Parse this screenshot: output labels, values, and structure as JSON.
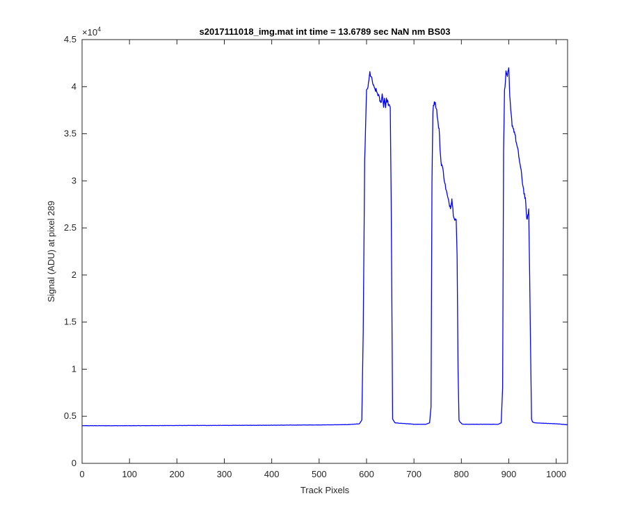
{
  "chart_data": {
    "type": "line",
    "title": "s2017111018_img.mat int time = 13.6789 sec  NaN nm BS03",
    "xlabel": "Track Pixels",
    "ylabel": "Signal (ADU) at pixel 289",
    "xlim": [
      0,
      1024
    ],
    "ylim": [
      0,
      45000
    ],
    "xticks": [
      0,
      100,
      200,
      300,
      400,
      500,
      600,
      700,
      800,
      900,
      1000
    ],
    "xtick_labels": [
      "0",
      "100",
      "200",
      "300",
      "400",
      "500",
      "600",
      "700",
      "800",
      "900",
      "1000"
    ],
    "yticks": [
      0,
      5000,
      10000,
      15000,
      20000,
      25000,
      30000,
      35000,
      40000,
      45000
    ],
    "ytick_labels": [
      "0",
      "0.5",
      "1",
      "1.5",
      "2",
      "2.5",
      "3",
      "3.5",
      "4",
      "4.5"
    ],
    "y_exponent_base": "×10",
    "y_exponent_power": "4",
    "grid": false,
    "series_color": "#0000ff",
    "series": [
      {
        "x": [
          0,
          100,
          200,
          300,
          400,
          500,
          560,
          585,
          590,
          593,
          596,
          600,
          604,
          607,
          612,
          616,
          620,
          625,
          630,
          633,
          636,
          638,
          640,
          642,
          644,
          647,
          650,
          652,
          655,
          660,
          700,
          725,
          733,
          736,
          738,
          740,
          743,
          746,
          748,
          751,
          753,
          755,
          757,
          760,
          763,
          766,
          770,
          773,
          777,
          780,
          783,
          786,
          789,
          791,
          793,
          795,
          797,
          799,
          801,
          805,
          850,
          878,
          884,
          887,
          889,
          891,
          894,
          897,
          900,
          902,
          904,
          907,
          910,
          913,
          916,
          920,
          923,
          926,
          929,
          932,
          935,
          937,
          939,
          942,
          944,
          946,
          948,
          950,
          955,
          1000,
          1024
        ],
        "y": [
          4000,
          4000,
          4020,
          4030,
          4050,
          4080,
          4110,
          4200,
          4600,
          14000,
          32000,
          39500,
          40200,
          41500,
          40600,
          39800,
          39600,
          39100,
          38200,
          39200,
          38000,
          38800,
          37900,
          38600,
          38500,
          38000,
          37700,
          28000,
          4700,
          4300,
          4150,
          4150,
          4300,
          6000,
          30000,
          37500,
          38500,
          38000,
          37500,
          36000,
          35500,
          33500,
          32000,
          31500,
          30500,
          29500,
          28500,
          27800,
          27200,
          28100,
          26500,
          26000,
          25800,
          22000,
          10000,
          4600,
          4400,
          4300,
          4200,
          4150,
          4150,
          4150,
          4300,
          8000,
          33000,
          39500,
          41500,
          41200,
          41800,
          39000,
          37500,
          36000,
          35500,
          35000,
          34000,
          33000,
          32000,
          31000,
          29800,
          28800,
          28000,
          26500,
          25800,
          27000,
          20000,
          12000,
          4700,
          4400,
          4300,
          4200,
          4100
        ]
      }
    ]
  }
}
